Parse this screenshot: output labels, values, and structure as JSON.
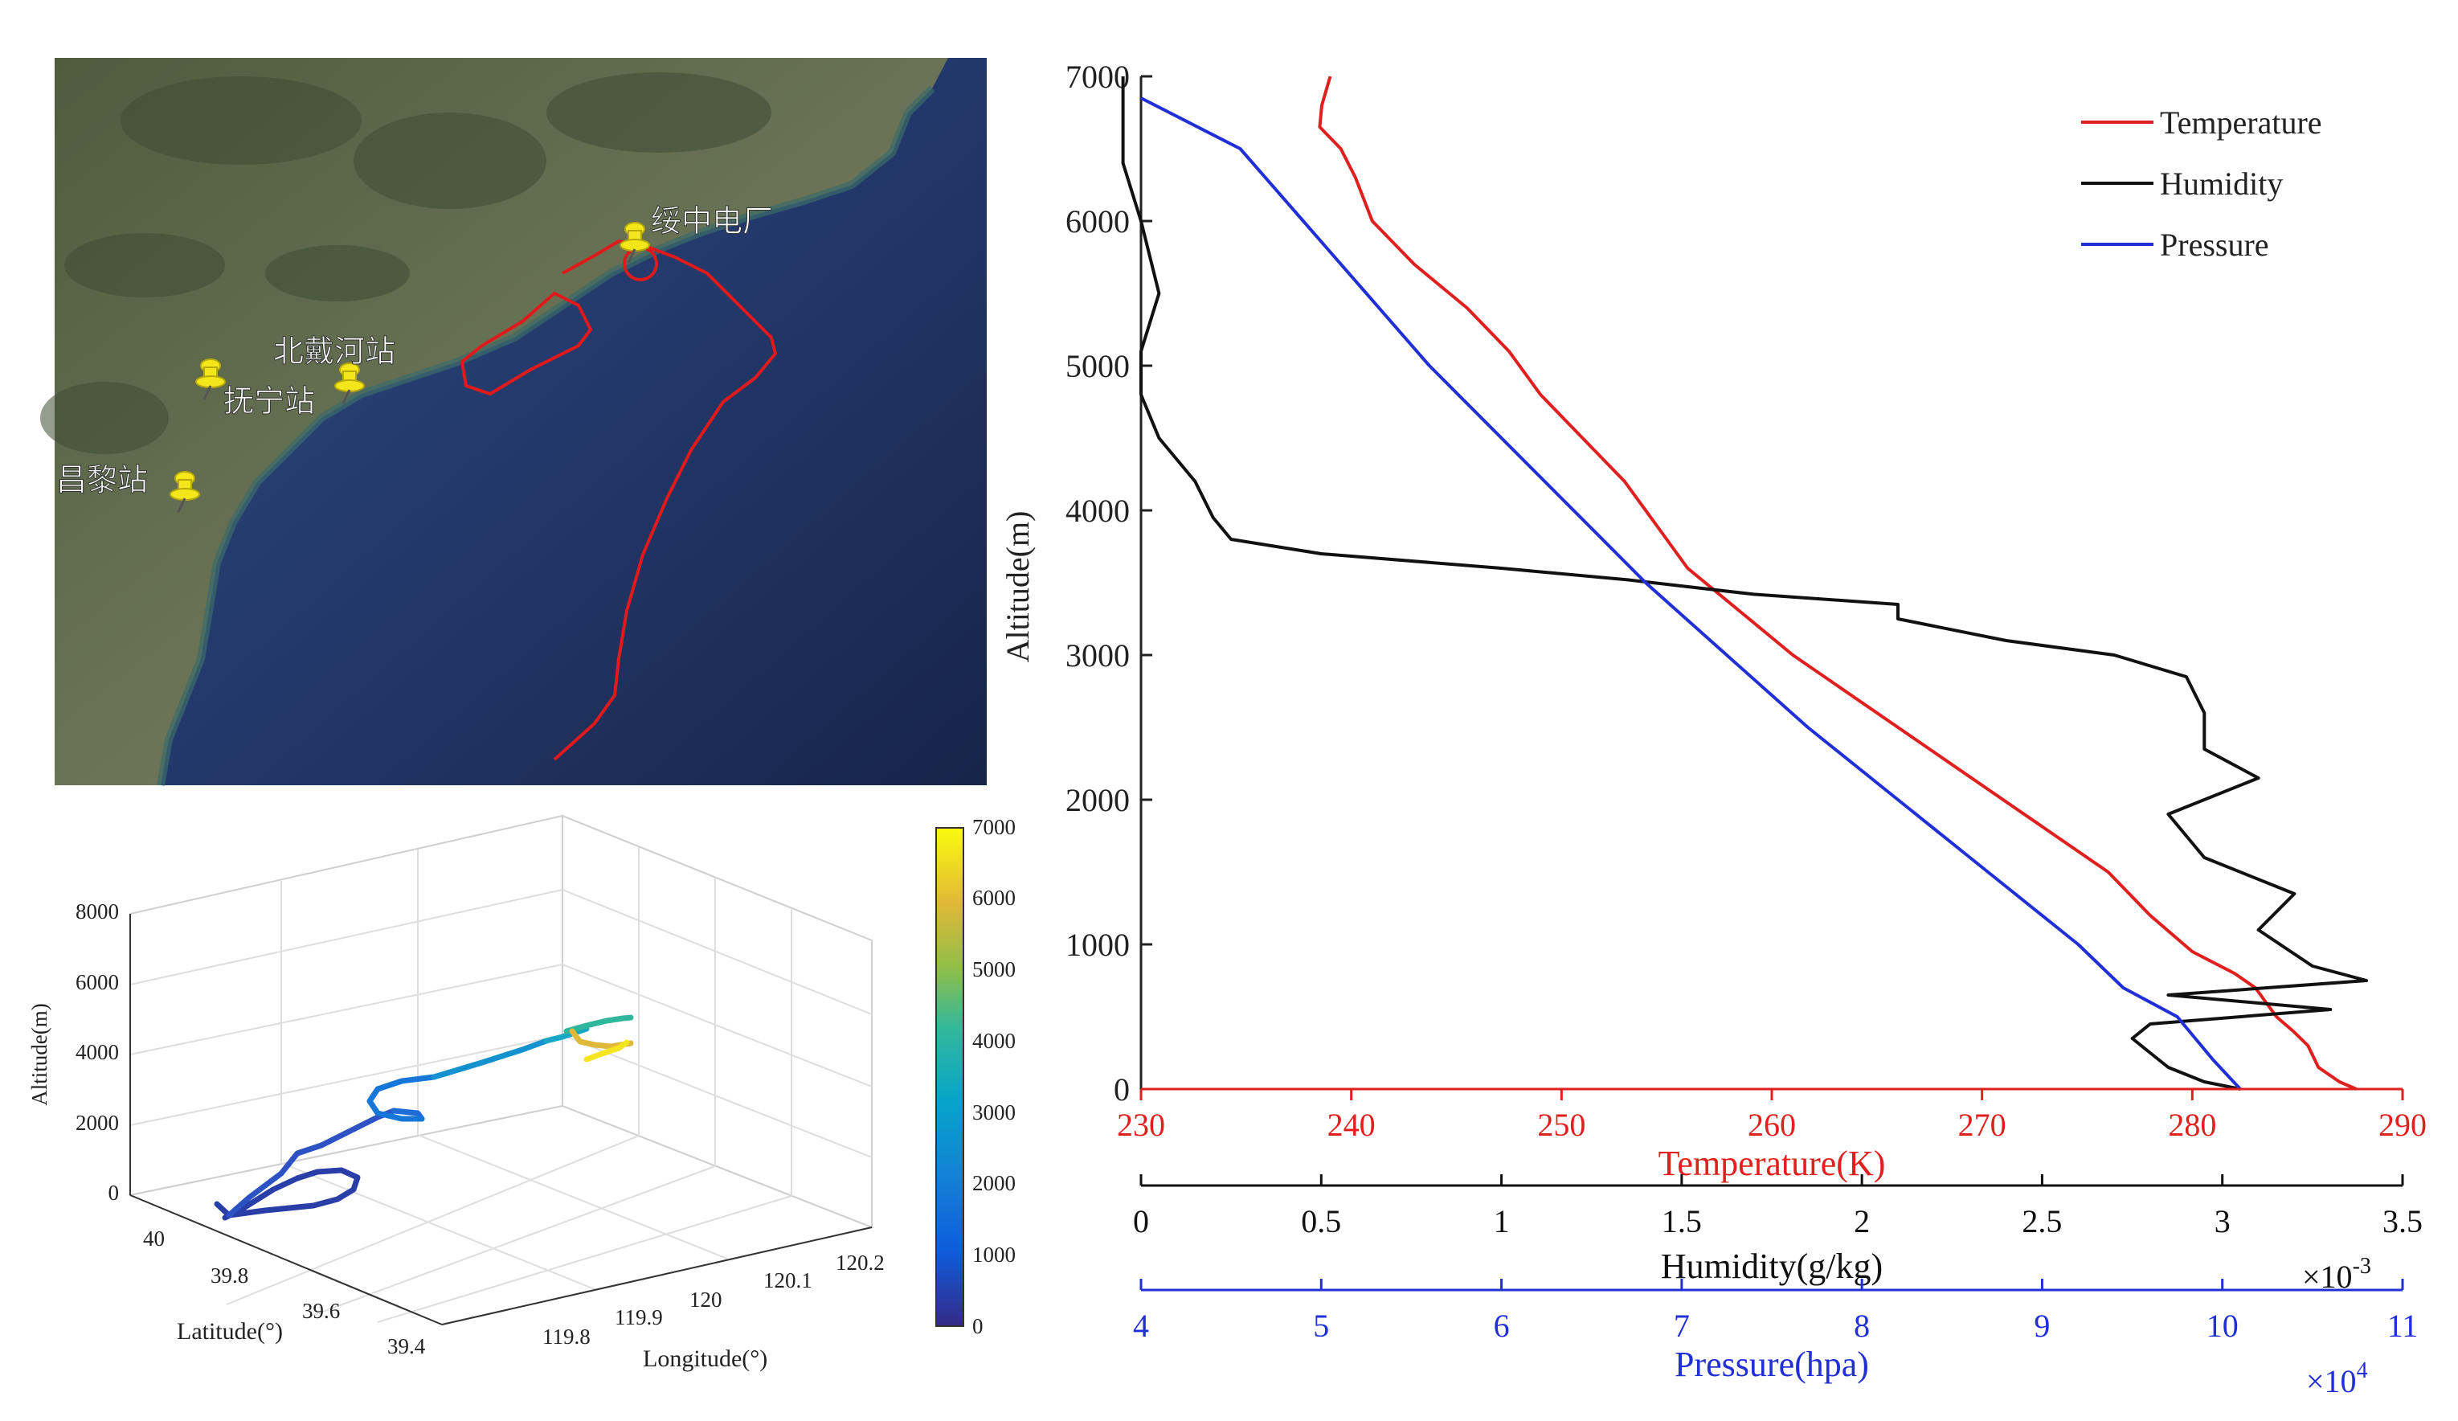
{
  "colors": {
    "temperature": "#e0201e",
    "humidity": "#111111",
    "pressure": "#2130d6",
    "track": "#e01a1a",
    "pin": "#f3e71b",
    "sea_deep": "#1b2a55",
    "land": "#5d6b4c"
  },
  "map": {
    "stations": [
      {
        "name": "绥中电厂",
        "icon": "pushpin-icon"
      },
      {
        "name": "北戴河站",
        "icon": "pushpin-icon"
      },
      {
        "name": "抚宁站",
        "icon": "pushpin-icon"
      },
      {
        "name": "昌黎站",
        "icon": "pushpin-icon"
      }
    ],
    "track_description": "flight-track"
  },
  "plot3d": {
    "zlabel": "Altitude(m)",
    "ylabel": "Latitude(°)",
    "xlabel": "Longitude(°)",
    "zticks": [
      "0",
      "2000",
      "4000",
      "6000",
      "8000"
    ],
    "yticks": [
      "40",
      "39.8",
      "39.6",
      "39.4"
    ],
    "xticks": [
      "119.8",
      "119.9",
      "120",
      "120.1",
      "120.2"
    ],
    "colorbar_ticks": [
      "0",
      "1000",
      "2000",
      "3000",
      "4000",
      "5000",
      "6000",
      "7000"
    ]
  },
  "chart_data": {
    "type": "line",
    "ylabel": "Altitude(m)",
    "ylim": [
      0,
      7000
    ],
    "yticks": [
      "0",
      "1000",
      "2000",
      "3000",
      "4000",
      "5000",
      "6000",
      "7000"
    ],
    "axes": {
      "temperature": {
        "label": "Temperature(K)",
        "range": [
          230,
          290
        ],
        "ticks": [
          "230",
          "240",
          "250",
          "260",
          "270",
          "280",
          "290"
        ]
      },
      "humidity": {
        "label": "Humidity(g/kg)",
        "range": [
          0,
          3.5
        ],
        "ticks": [
          "0",
          "0.5",
          "1",
          "1.5",
          "2",
          "2.5",
          "3",
          "3.5"
        ],
        "multiplier_base": "×10",
        "multiplier_exp": "-3"
      },
      "pressure": {
        "label": "Pressure(hpa)",
        "range": [
          4,
          11
        ],
        "ticks": [
          "4",
          "5",
          "6",
          "7",
          "8",
          "9",
          "10",
          "11"
        ],
        "multiplier_base": "×10",
        "multiplier_exp": "4"
      }
    },
    "legend": [
      "Temperature",
      "Humidity",
      "Pressure"
    ],
    "series": [
      {
        "name": "Temperature",
        "axis": "temperature",
        "points": [
          [
            287.8,
            0
          ],
          [
            287,
            50
          ],
          [
            286,
            150
          ],
          [
            285.5,
            300
          ],
          [
            284.8,
            400
          ],
          [
            284,
            500
          ],
          [
            283,
            700
          ],
          [
            282,
            800
          ],
          [
            280,
            950
          ],
          [
            278,
            1200
          ],
          [
            276,
            1500
          ],
          [
            273,
            1800
          ],
          [
            270,
            2100
          ],
          [
            267,
            2400
          ],
          [
            264,
            2700
          ],
          [
            261,
            3000
          ],
          [
            258.5,
            3300
          ],
          [
            256,
            3600
          ],
          [
            254.5,
            3900
          ],
          [
            253,
            4200
          ],
          [
            251,
            4500
          ],
          [
            249,
            4800
          ],
          [
            247.5,
            5100
          ],
          [
            245.5,
            5400
          ],
          [
            243,
            5700
          ],
          [
            241,
            6000
          ],
          [
            240.2,
            6300
          ],
          [
            239.5,
            6500
          ],
          [
            238.5,
            6650
          ],
          [
            238.6,
            6800
          ],
          [
            239,
            7000
          ]
        ]
      },
      {
        "name": "Humidity",
        "axis": "humidity",
        "points": [
          [
            3.05,
            0
          ],
          [
            2.95,
            50
          ],
          [
            2.85,
            150
          ],
          [
            2.8,
            250
          ],
          [
            2.75,
            350
          ],
          [
            2.8,
            450
          ],
          [
            3.3,
            550
          ],
          [
            2.85,
            650
          ],
          [
            3.4,
            750
          ],
          [
            3.25,
            850
          ],
          [
            3.1,
            1100
          ],
          [
            3.2,
            1350
          ],
          [
            2.95,
            1600
          ],
          [
            2.85,
            1900
          ],
          [
            3.1,
            2150
          ],
          [
            2.95,
            2350
          ],
          [
            2.95,
            2600
          ],
          [
            2.9,
            2850
          ],
          [
            2.7,
            3000
          ],
          [
            2.4,
            3100
          ],
          [
            2.1,
            3250
          ],
          [
            2.1,
            3350
          ],
          [
            1.7,
            3420
          ],
          [
            1.35,
            3520
          ],
          [
            1.0,
            3600
          ],
          [
            0.5,
            3700
          ],
          [
            0.25,
            3800
          ],
          [
            0.2,
            3950
          ],
          [
            0.15,
            4200
          ],
          [
            0.05,
            4500
          ],
          [
            0.0,
            4800
          ],
          [
            0.0,
            5100
          ],
          [
            0.05,
            5500
          ],
          [
            0.0,
            6000
          ],
          [
            -0.05,
            6400
          ],
          [
            -0.05,
            6700
          ],
          [
            -0.05,
            7000
          ]
        ]
      },
      {
        "name": "Pressure",
        "axis": "pressure",
        "points": [
          [
            10.1,
            0
          ],
          [
            9.95,
            200
          ],
          [
            9.75,
            500
          ],
          [
            9.45,
            700
          ],
          [
            9.2,
            1000
          ],
          [
            8.7,
            1500
          ],
          [
            8.2,
            2000
          ],
          [
            7.7,
            2500
          ],
          [
            7.25,
            3000
          ],
          [
            6.8,
            3500
          ],
          [
            6.4,
            4000
          ],
          [
            6.0,
            4500
          ],
          [
            5.6,
            5000
          ],
          [
            5.25,
            5500
          ],
          [
            4.9,
            6000
          ],
          [
            4.55,
            6500
          ],
          [
            4.0,
            6850
          ]
        ]
      }
    ]
  }
}
